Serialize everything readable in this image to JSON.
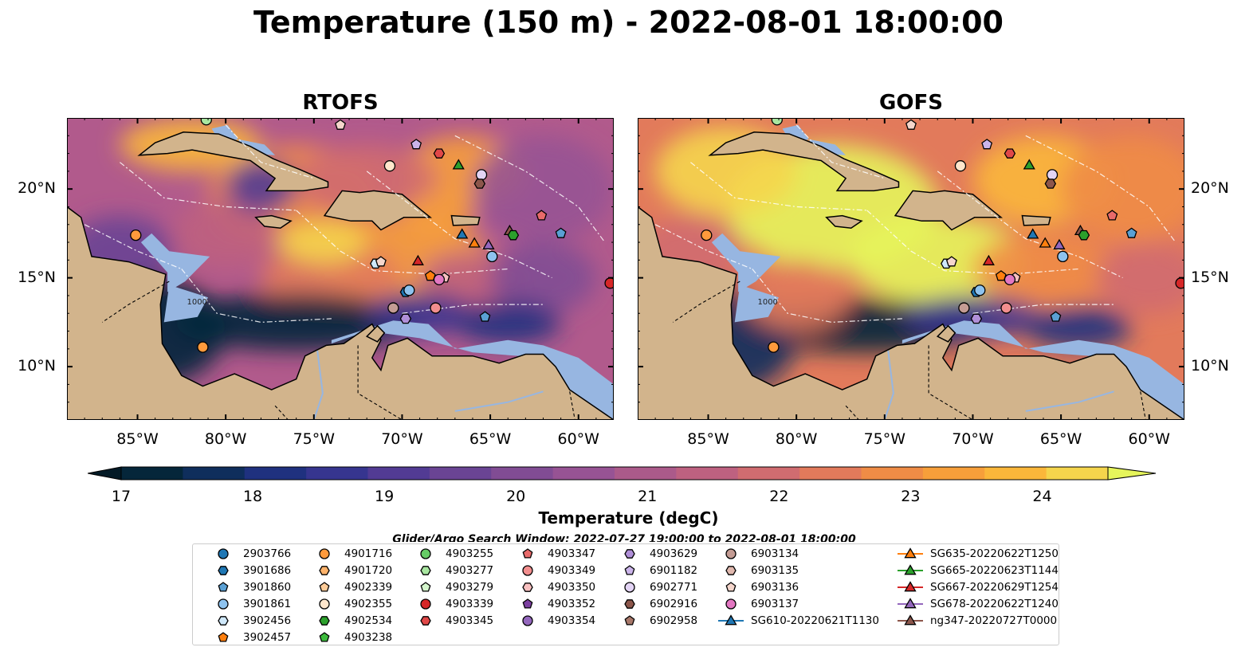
{
  "title": "Temperature (150 m) - 2022-08-01 18:00:00",
  "panels": [
    {
      "title": "RTOFS"
    },
    {
      "title": "GOFS"
    }
  ],
  "map": {
    "lon_range": [
      -89,
      -58
    ],
    "lat_range": [
      7,
      24
    ],
    "lon_ticks": [
      "85°W",
      "80°W",
      "75°W",
      "70°W",
      "65°W",
      "60°W"
    ],
    "lat_ticks": [
      "20°N",
      "15°N",
      "10°N"
    ],
    "land_color": "#d2b48c",
    "shelf_color": "#97b6e1",
    "contour_label": "1000"
  },
  "colorbar": {
    "label": "Temperature (degC)",
    "min": 17,
    "max": 24.5,
    "step": 0.5,
    "ticks": [
      "17",
      "18",
      "19",
      "20",
      "21",
      "22",
      "23",
      "24"
    ],
    "colors": [
      "#05263a",
      "#0f2e5c",
      "#1f317f",
      "#36358f",
      "#523b94",
      "#6a4494",
      "#814c94",
      "#975394",
      "#ab5a8a",
      "#be6180",
      "#d06c70",
      "#e27a5b",
      "#ef8c46",
      "#f79f3a",
      "#fbb73a",
      "#f5d54c"
    ],
    "under_color": "#031a26",
    "over_color": "#e6f55b"
  },
  "search_window": "Glider/Argo Search Window: 2022-07-27 19:00:00 to 2022-08-01 18:00:00",
  "legend": {
    "columns": [
      [
        {
          "label": "2903766",
          "shape": "circle",
          "color": "#1f77b4"
        },
        {
          "label": "3901686",
          "shape": "hexagon",
          "color": "#1f77b4"
        },
        {
          "label": "3901860",
          "shape": "pentagon",
          "color": "#5aa0d4"
        },
        {
          "label": "3901861",
          "shape": "circle",
          "color": "#8ec3ef"
        },
        {
          "label": "3902456",
          "shape": "hexagon",
          "color": "#cfe8fa"
        },
        {
          "label": "3902457",
          "shape": "pentagon",
          "color": "#ff7f0e"
        }
      ],
      [
        {
          "label": "4901716",
          "shape": "circle",
          "color": "#ff9a3c"
        },
        {
          "label": "4901720",
          "shape": "hexagon",
          "color": "#ffb36b"
        },
        {
          "label": "4902339",
          "shape": "pentagon",
          "color": "#ffcc99"
        },
        {
          "label": "4902355",
          "shape": "circle",
          "color": "#ffe6cc"
        },
        {
          "label": "4902534",
          "shape": "hexagon",
          "color": "#2ca02c"
        },
        {
          "label": "4903238",
          "shape": "pentagon",
          "color": "#3dbb3d"
        }
      ],
      [
        {
          "label": "4903255",
          "shape": "circle",
          "color": "#66cc66"
        },
        {
          "label": "4903277",
          "shape": "hexagon",
          "color": "#a8e6a0"
        },
        {
          "label": "4903279",
          "shape": "pentagon",
          "color": "#d4f5cc"
        },
        {
          "label": "4903339",
          "shape": "circle",
          "color": "#d62728"
        },
        {
          "label": "4903345",
          "shape": "hexagon",
          "color": "#e04848"
        }
      ],
      [
        {
          "label": "4903347",
          "shape": "pentagon",
          "color": "#e86a6a"
        },
        {
          "label": "4903349",
          "shape": "circle",
          "color": "#f28e8e"
        },
        {
          "label": "4903350",
          "shape": "hexagon",
          "color": "#f8c0c0"
        },
        {
          "label": "4903352",
          "shape": "pentagon",
          "color": "#7b3fa0"
        },
        {
          "label": "4903354",
          "shape": "circle",
          "color": "#9467bd"
        }
      ],
      [
        {
          "label": "4903629",
          "shape": "hexagon",
          "color": "#b08fd8"
        },
        {
          "label": "6901182",
          "shape": "pentagon",
          "color": "#cbb4ea"
        },
        {
          "label": "6902771",
          "shape": "circle",
          "color": "#e3d4f5"
        },
        {
          "label": "6902916",
          "shape": "hexagon",
          "color": "#8c564b"
        },
        {
          "label": "6902958",
          "shape": "pentagon",
          "color": "#a8786a"
        }
      ],
      [
        {
          "label": "6903134",
          "shape": "circle",
          "color": "#c49c94"
        },
        {
          "label": "6903135",
          "shape": "hexagon",
          "color": "#e0b8ae"
        },
        {
          "label": "6903136",
          "shape": "pentagon",
          "color": "#f5d6cc"
        },
        {
          "label": "6903137",
          "shape": "circle",
          "color": "#e377c2"
        },
        {
          "label": "SG610-20220621T1130",
          "shape": "triangle-line",
          "color": "#1f77b4"
        }
      ],
      [
        {
          "label": "SG635-20220622T1250",
          "shape": "triangle-line",
          "color": "#ff7f0e"
        },
        {
          "label": "SG665-20220623T1144",
          "shape": "triangle-line",
          "color": "#2ca02c"
        },
        {
          "label": "SG667-20220629T1254",
          "shape": "triangle-line",
          "color": "#d62728"
        },
        {
          "label": "SG678-20220622T1240",
          "shape": "triangle-line",
          "color": "#9467bd"
        },
        {
          "label": "ng347-20220727T0000",
          "shape": "triangle-line",
          "color": "#8c564b"
        }
      ]
    ]
  },
  "markers": [
    {
      "lon": -85.1,
      "lat": 17.4,
      "shape": "circle",
      "color": "#ff9a3c"
    },
    {
      "lon": -81.3,
      "lat": 11.1,
      "shape": "circle",
      "color": "#ff9a3c"
    },
    {
      "lon": -81.1,
      "lat": 23.9,
      "shape": "circle",
      "color": "#a8e6a0"
    },
    {
      "lon": -73.5,
      "lat": 23.6,
      "shape": "pentagon",
      "color": "#f5d6cc"
    },
    {
      "lon": -69.2,
      "lat": 22.5,
      "shape": "pentagon",
      "color": "#cbb4ea"
    },
    {
      "lon": -67.9,
      "lat": 22.0,
      "shape": "hexagon",
      "color": "#e04848"
    },
    {
      "lon": -70.7,
      "lat": 21.3,
      "shape": "circle",
      "color": "#ffe6cc"
    },
    {
      "lon": -66.8,
      "lat": 21.3,
      "shape": "triangle",
      "color": "#2ca02c"
    },
    {
      "lon": -65.5,
      "lat": 20.8,
      "shape": "circle",
      "color": "#e3d4f5"
    },
    {
      "lon": -65.6,
      "lat": 20.3,
      "shape": "hexagon",
      "color": "#8c564b"
    },
    {
      "lon": -62.1,
      "lat": 18.5,
      "shape": "pentagon",
      "color": "#e86a6a"
    },
    {
      "lon": -63.9,
      "lat": 17.6,
      "shape": "triangle",
      "color": "#8c564b"
    },
    {
      "lon": -63.7,
      "lat": 17.4,
      "shape": "hexagon",
      "color": "#2ca02c"
    },
    {
      "lon": -61.0,
      "lat": 17.5,
      "shape": "pentagon",
      "color": "#5aa0d4"
    },
    {
      "lon": -66.6,
      "lat": 17.4,
      "shape": "triangle",
      "color": "#1f77b4"
    },
    {
      "lon": -65.9,
      "lat": 16.9,
      "shape": "triangle",
      "color": "#ff7f0e"
    },
    {
      "lon": -65.1,
      "lat": 16.8,
      "shape": "triangle",
      "color": "#9467bd"
    },
    {
      "lon": -64.9,
      "lat": 16.2,
      "shape": "circle",
      "color": "#8ec3ef"
    },
    {
      "lon": -71.5,
      "lat": 15.8,
      "shape": "hexagon",
      "color": "#cfe8fa"
    },
    {
      "lon": -71.2,
      "lat": 15.9,
      "shape": "pentagon",
      "color": "#f5d6cc"
    },
    {
      "lon": -69.1,
      "lat": 15.9,
      "shape": "triangle",
      "color": "#d62728"
    },
    {
      "lon": -68.4,
      "lat": 15.1,
      "shape": "pentagon",
      "color": "#ff7f0e"
    },
    {
      "lon": -67.6,
      "lat": 15.0,
      "shape": "pentagon",
      "color": "#f8c0c0"
    },
    {
      "lon": -67.9,
      "lat": 14.9,
      "shape": "circle",
      "color": "#e377c2"
    },
    {
      "lon": -69.8,
      "lat": 14.2,
      "shape": "hexagon",
      "color": "#1f77b4"
    },
    {
      "lon": -69.6,
      "lat": 14.3,
      "shape": "circle",
      "color": "#8ec3ef"
    },
    {
      "lon": -70.5,
      "lat": 13.3,
      "shape": "circle",
      "color": "#c49c94"
    },
    {
      "lon": -68.1,
      "lat": 13.3,
      "shape": "circle",
      "color": "#f28e8e"
    },
    {
      "lon": -69.8,
      "lat": 12.7,
      "shape": "hexagon",
      "color": "#b08fd8"
    },
    {
      "lon": -65.3,
      "lat": 12.8,
      "shape": "pentagon",
      "color": "#5aa0d4"
    },
    {
      "lon": -58.2,
      "lat": 14.7,
      "shape": "circle",
      "color": "#d62728"
    }
  ]
}
